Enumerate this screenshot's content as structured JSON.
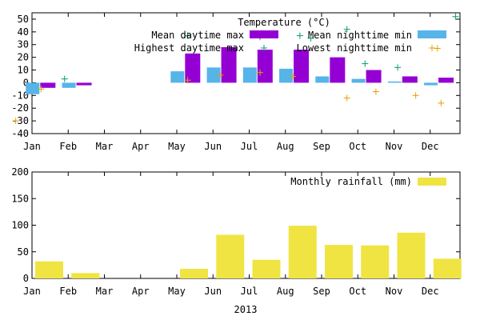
{
  "chart_data": [
    {
      "type": "bar",
      "title": "Temperature (°C)",
      "categories": [
        "Jan",
        "Feb",
        "Mar",
        "Apr",
        "May",
        "Jun",
        "Jul",
        "Aug",
        "Sep",
        "Oct",
        "Nov",
        "Dec"
      ],
      "x_tick_labels": [
        "Jan",
        "Feb",
        "Mar",
        "Apr",
        "May",
        "Jun",
        "Jul",
        "Aug",
        "Sep",
        "Oct",
        "Nov",
        "Dec"
      ],
      "ylim": [
        -40,
        55
      ],
      "y_ticks": [
        -40,
        -30,
        -20,
        -10,
        0,
        10,
        20,
        30,
        40,
        50
      ],
      "legend_position": "top-right",
      "grid": false,
      "series": [
        {
          "name": "Mean daytime max",
          "kind": "bar",
          "color": "#9400d3",
          "values": [
            -4,
            -2,
            null,
            null,
            23,
            28,
            26,
            26,
            20,
            10,
            5,
            4
          ]
        },
        {
          "name": "Mean nighttime min",
          "kind": "bar",
          "color": "#56b4e9",
          "values": [
            -9,
            -4,
            null,
            null,
            9,
            12,
            12,
            11,
            5,
            3,
            1,
            -2
          ]
        },
        {
          "name": "Highest daytime max",
          "kind": "point",
          "marker": "+",
          "color": "#009e73",
          "points": [
            {
              "x": 0.9,
              "y": 3
            },
            {
              "x": 4.3,
              "y": 37
            },
            {
              "x": 6.3,
              "y": 36
            },
            {
              "x": 7.4,
              "y": 37
            },
            {
              "x": 7.7,
              "y": 35
            },
            {
              "x": 8.7,
              "y": 42
            },
            {
              "x": 9.2,
              "y": 15
            },
            {
              "x": 10.1,
              "y": 12
            },
            {
              "x": 11.7,
              "y": 52
            }
          ]
        },
        {
          "name": "Lowest nighttime min",
          "kind": "point",
          "marker": "+",
          "color": "#e69f00",
          "points": [
            {
              "x": -0.45,
              "y": -30
            },
            {
              "x": 0.25,
              "y": -5
            },
            {
              "x": 4.3,
              "y": 2
            },
            {
              "x": 5.2,
              "y": 6
            },
            {
              "x": 6.3,
              "y": 8
            },
            {
              "x": 7.2,
              "y": 5
            },
            {
              "x": 8.7,
              "y": -12
            },
            {
              "x": 9.5,
              "y": -7
            },
            {
              "x": 10.6,
              "y": -10
            },
            {
              "x": 11.3,
              "y": -16
            },
            {
              "x": 11.2,
              "y": 27
            }
          ]
        }
      ]
    },
    {
      "type": "bar",
      "title": "",
      "categories": [
        "Jan",
        "Feb",
        "Mar",
        "Apr",
        "May",
        "Jun",
        "Jul",
        "Aug",
        "Sep",
        "Oct",
        "Nov",
        "Dec"
      ],
      "x_tick_labels": [
        "Jan",
        "Feb",
        "Mar",
        "Apr",
        "May",
        "Jun",
        "Jul",
        "Aug",
        "Sep",
        "Oct",
        "Nov",
        "Dec"
      ],
      "xlabel": "2013",
      "ylim": [
        0,
        200
      ],
      "y_ticks": [
        0,
        50,
        100,
        150,
        200
      ],
      "legend_position": "top-right",
      "grid": false,
      "series": [
        {
          "name": "Monthly rainfall (mm)",
          "kind": "bar",
          "color": "#f0e442",
          "values": [
            32,
            10,
            null,
            null,
            18,
            82,
            35,
            99,
            63,
            62,
            86,
            37
          ]
        }
      ]
    }
  ]
}
